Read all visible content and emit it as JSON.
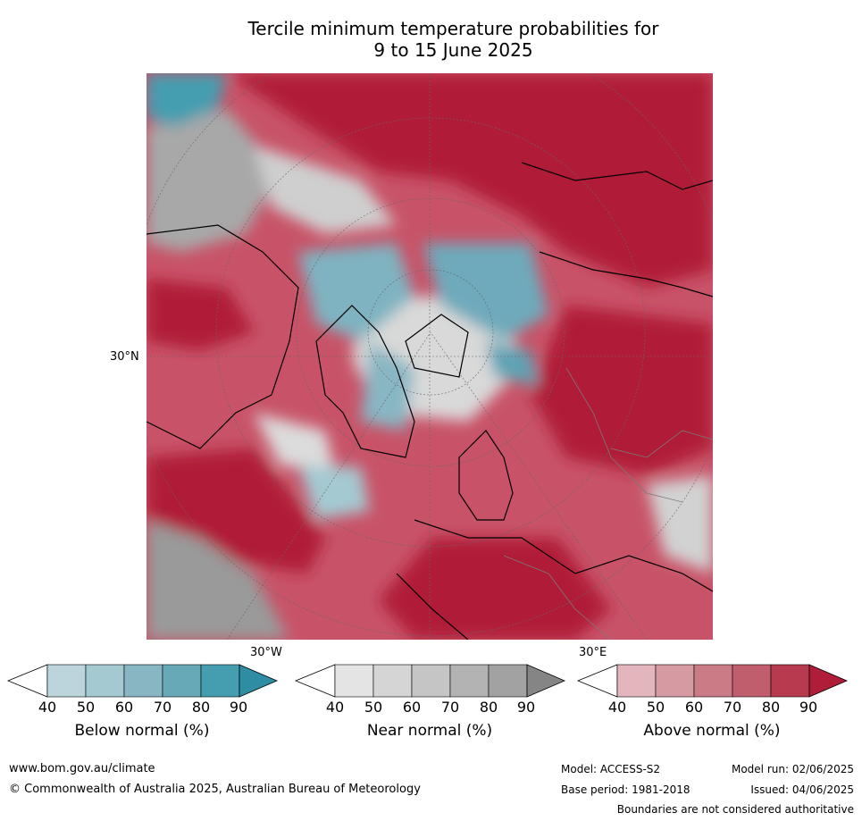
{
  "title_line1": "Tercile minimum temperature probabilities for",
  "title_line2": "9 to 15 June 2025",
  "axis_labels": {
    "lat": "30°N",
    "lon_west": "30°W",
    "lon_east": "30°E"
  },
  "legends": [
    {
      "title": "Below normal (%)",
      "ticks": [
        "40",
        "50",
        "60",
        "70",
        "80",
        "90"
      ],
      "colors": [
        "#ffffff",
        "#bcd5dc",
        "#a4c9d1",
        "#88b6c3",
        "#68a9b8",
        "#459eb0",
        "#2e8da2"
      ]
    },
    {
      "title": "Near normal (%)",
      "ticks": [
        "40",
        "50",
        "60",
        "70",
        "80",
        "90"
      ],
      "colors": [
        "#ffffff",
        "#e4e4e4",
        "#d5d5d5",
        "#c5c5c5",
        "#b3b3b3",
        "#a2a2a2",
        "#858585"
      ]
    },
    {
      "title": "Above normal (%)",
      "ticks": [
        "40",
        "50",
        "60",
        "70",
        "80",
        "90"
      ],
      "colors": [
        "#ffffff",
        "#e2b6bc",
        "#d69aa3",
        "#ca7b86",
        "#c05e6d",
        "#b83a4f",
        "#b01d38"
      ]
    }
  ],
  "footer": {
    "url": "www.bom.gov.au/climate",
    "copyright": "© Commonwealth of Australia 2025, Australian Bureau of Meteorology",
    "model": "Model: ACCESS-S2",
    "model_run": "Model run: 02/06/2025",
    "base_period": "Base period: 1981-2018",
    "issued": "Issued: 04/06/2025",
    "disclaimer": "Boundaries are not considered authoritative"
  }
}
